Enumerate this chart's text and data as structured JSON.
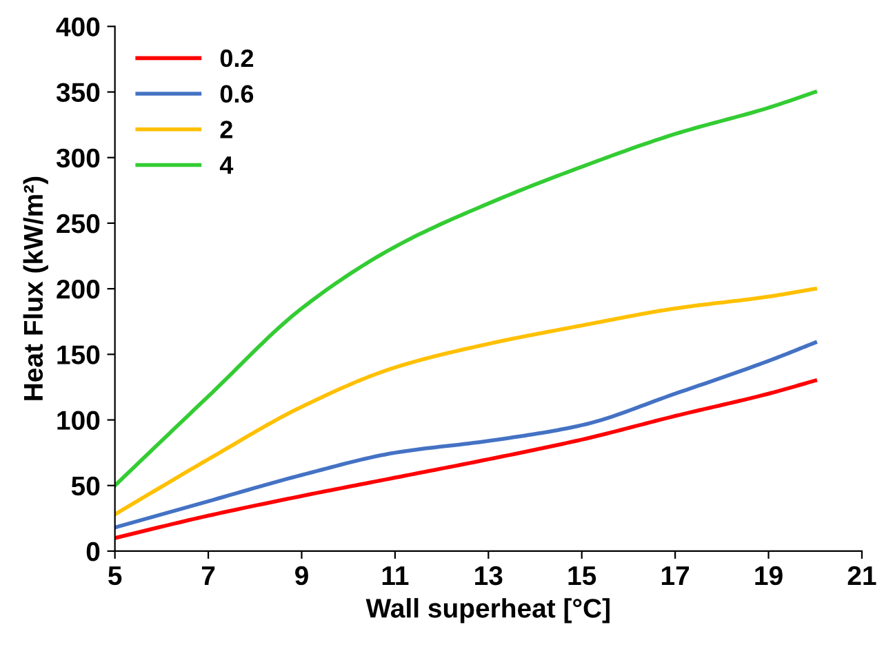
{
  "chart_data": {
    "type": "line",
    "xlabel": "Wall superheat [°C]",
    "ylabel": "Heat Flux (kW/m²)",
    "x": [
      5,
      7,
      9,
      11,
      13,
      15,
      17,
      19,
      20
    ],
    "series": [
      {
        "name": "0.2",
        "color": "#ff0000",
        "values": [
          10,
          27,
          42,
          56,
          70,
          85,
          103,
          120,
          130
        ]
      },
      {
        "name": "0.6",
        "color": "#4472c4",
        "values": [
          18,
          38,
          58,
          75,
          84,
          96,
          120,
          145,
          159
        ]
      },
      {
        "name": "2",
        "color": "#ffc000",
        "values": [
          28,
          70,
          110,
          140,
          158,
          172,
          185,
          194,
          200
        ]
      },
      {
        "name": "4",
        "color": "#33cc33",
        "values": [
          50,
          118,
          185,
          232,
          265,
          293,
          318,
          338,
          350
        ]
      }
    ],
    "xlim": [
      5,
      21
    ],
    "xticks": [
      5,
      7,
      9,
      11,
      13,
      15,
      17,
      19,
      21
    ],
    "ylim": [
      0,
      400
    ],
    "yticks": [
      0,
      50,
      100,
      150,
      200,
      250,
      300,
      350,
      400
    ],
    "grid": false,
    "legend": "top left",
    "marker": "none",
    "line_style": "solid"
  }
}
